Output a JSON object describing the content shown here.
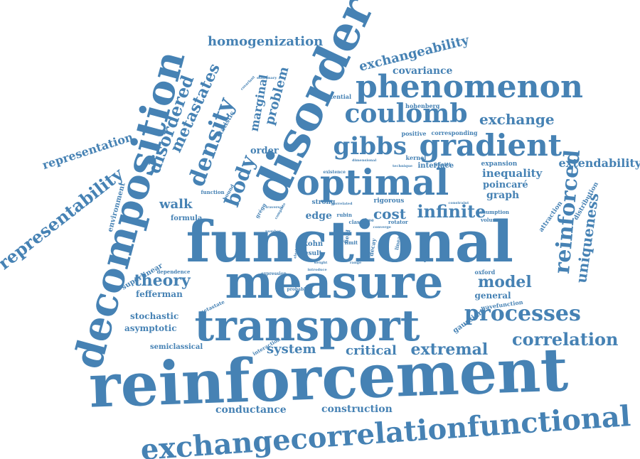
{
  "palette": {
    "word": "#4682b4",
    "background": "#ffffff"
  },
  "words": [
    {
      "text": "reinforcement",
      "weight": 100
    },
    {
      "text": "functional",
      "weight": 92
    },
    {
      "text": "disorder",
      "weight": 72
    },
    {
      "text": "measure",
      "weight": 70
    },
    {
      "text": "transport",
      "weight": 68
    },
    {
      "text": "decomposition",
      "weight": 66
    },
    {
      "text": "exchangecorrelationfunctional",
      "weight": 44
    },
    {
      "text": "optimal",
      "weight": 55
    },
    {
      "text": "phenomenon",
      "weight": 45
    },
    {
      "text": "gradient",
      "weight": 43
    },
    {
      "text": "coulomb",
      "weight": 38
    },
    {
      "text": "gibbs",
      "weight": 36
    },
    {
      "text": "processes",
      "weight": 34
    },
    {
      "text": "reinforced",
      "weight": 32
    },
    {
      "text": "density",
      "weight": 34
    },
    {
      "text": "representability",
      "weight": 30
    },
    {
      "text": "infinite",
      "weight": 29
    },
    {
      "text": "correlation",
      "weight": 28
    },
    {
      "text": "extremal",
      "weight": 26
    },
    {
      "text": "body",
      "weight": 28
    },
    {
      "text": "uniqueness",
      "weight": 25
    },
    {
      "text": "disordered",
      "weight": 26
    },
    {
      "text": "metastates",
      "weight": 25
    },
    {
      "text": "exchange",
      "weight": 22
    },
    {
      "text": "model",
      "weight": 24
    },
    {
      "text": "theory",
      "weight": 23
    },
    {
      "text": "homogenization",
      "weight": 21
    },
    {
      "text": "exchangeability",
      "weight": 21
    },
    {
      "text": "representation",
      "weight": 19
    },
    {
      "text": "problem",
      "weight": 19
    },
    {
      "text": "marginal",
      "weight": 18
    },
    {
      "text": "cost",
      "weight": 21
    },
    {
      "text": "critical",
      "weight": 19
    },
    {
      "text": "system",
      "weight": 18
    },
    {
      "text": "walk",
      "weight": 19
    },
    {
      "text": "extendability",
      "weight": 17
    },
    {
      "text": "inequality",
      "weight": 16
    },
    {
      "text": "graph",
      "weight": 15
    },
    {
      "text": "conductance",
      "weight": 14
    },
    {
      "text": "construction",
      "weight": 14
    },
    {
      "text": "covariance",
      "weight": 14
    },
    {
      "text": "poincaré",
      "weight": 13
    },
    {
      "text": "edge",
      "weight": 15
    },
    {
      "text": "fefferman",
      "weight": 13
    },
    {
      "text": "stochastic",
      "weight": 12
    },
    {
      "text": "asymptotic",
      "weight": 12
    },
    {
      "text": "general",
      "weight": 12
    },
    {
      "text": "order",
      "weight": 13
    },
    {
      "text": "environment",
      "weight": 10
    },
    {
      "text": "superlinear",
      "weight": 10
    },
    {
      "text": "statistic",
      "weight": 9
    },
    {
      "text": "formula",
      "weight": 10
    },
    {
      "text": "semiclassical",
      "weight": 10
    },
    {
      "text": "gaussian",
      "weight": 10
    },
    {
      "text": "kohn",
      "weight": 10
    },
    {
      "text": "result",
      "weight": 9
    },
    {
      "text": "strong",
      "weight": 9
    },
    {
      "text": "rigorous",
      "weight": 9
    },
    {
      "text": "interface",
      "weight": 10
    },
    {
      "text": "expansion",
      "weight": 9
    },
    {
      "text": "attraction",
      "weight": 9
    },
    {
      "text": "distribution",
      "weight": 9
    },
    {
      "text": "wavefunction",
      "weight": 8
    },
    {
      "text": "volume",
      "weight": 7
    },
    {
      "text": "assumption",
      "weight": 7
    },
    {
      "text": "oxford",
      "weight": 8
    },
    {
      "text": "positive",
      "weight": 8
    },
    {
      "text": "corresponding",
      "weight": 8
    },
    {
      "text": "hohenberg",
      "weight": 8
    },
    {
      "text": "potential",
      "weight": 8
    },
    {
      "text": "kernel",
      "weight": 8
    },
    {
      "text": "finetti",
      "weight": 7
    },
    {
      "text": "function",
      "weight": 7
    },
    {
      "text": "bound",
      "weight": 7
    },
    {
      "text": "grégg",
      "weight": 7
    },
    {
      "text": "dependence",
      "weight": 7
    },
    {
      "text": "metastate",
      "weight": 7
    },
    {
      "text": "interaction",
      "weight": 7
    },
    {
      "text": "existence",
      "weight": 6
    },
    {
      "text": "rotator",
      "weight": 7
    },
    {
      "text": "class",
      "weight": 7
    },
    {
      "text": "free",
      "weight": 6
    },
    {
      "text": "rubin",
      "weight": 7
    },
    {
      "text": "field",
      "weight": 8
    },
    {
      "text": "limit",
      "weight": 7
    },
    {
      "text": "decay",
      "weight": 8
    },
    {
      "text": "linear",
      "weight": 7
    },
    {
      "text": "stationary",
      "weight": 5
    },
    {
      "text": "covariant",
      "weight": 5
    },
    {
      "text": "dimensional",
      "weight": 5
    },
    {
      "text": "technique",
      "weight": 5
    },
    {
      "text": "constraint",
      "weight": 5
    },
    {
      "text": "expression",
      "weight": 6
    },
    {
      "text": "probability",
      "weight": 6
    },
    {
      "text": "converge",
      "weight": 5
    },
    {
      "text": "term",
      "weight": 5
    },
    {
      "text": "range",
      "weight": 5
    },
    {
      "text": "weight",
      "weight": 5
    },
    {
      "text": "introduce",
      "weight": 5
    },
    {
      "text": "correlated",
      "weight": 5
    },
    {
      "text": "electron",
      "weight": 5
    },
    {
      "text": "complete",
      "weight": 5
    },
    {
      "text": "traversal",
      "weight": 5
    },
    {
      "text": "number",
      "weight": 5
    },
    {
      "text": "estimate",
      "weight": 5
    }
  ]
}
